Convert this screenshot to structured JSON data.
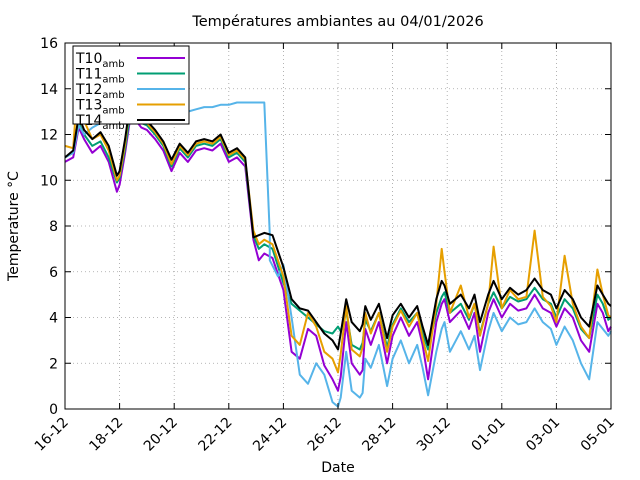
{
  "chart_data": {
    "type": "line",
    "title": "Températures ambiantes au 04/01/2026",
    "xlabel": "Date",
    "ylabel": "Temperature °C",
    "xlim": [
      0,
      20
    ],
    "ylim": [
      0,
      16
    ],
    "grid": true,
    "legend_position": "top-left",
    "x_ticks": [
      {
        "value": 0,
        "label": "16-12"
      },
      {
        "value": 2,
        "label": "18-12"
      },
      {
        "value": 4,
        "label": "20-12"
      },
      {
        "value": 6,
        "label": "22-12"
      },
      {
        "value": 8,
        "label": "24-12"
      },
      {
        "value": 10,
        "label": "26-12"
      },
      {
        "value": 12,
        "label": "28-12"
      },
      {
        "value": 14,
        "label": "30-12"
      },
      {
        "value": 16,
        "label": "01-01"
      },
      {
        "value": 18,
        "label": "03-01"
      },
      {
        "value": 20,
        "label": "05-01"
      }
    ],
    "y_ticks": [
      0,
      2,
      4,
      6,
      8,
      10,
      12,
      14,
      16
    ],
    "x_unit": "days since 16-12",
    "series": [
      {
        "name": "T10",
        "subscript": "amb",
        "color": "#9400d3",
        "x": [
          0,
          0.3,
          0.5,
          0.7,
          1.0,
          1.3,
          1.6,
          1.9,
          2.0,
          2.2,
          2.4,
          2.5,
          2.6,
          2.8,
          3.0,
          3.3,
          3.6,
          3.9,
          4.2,
          4.5,
          4.8,
          5.1,
          5.4,
          5.7,
          6.0,
          6.3,
          6.6,
          6.9,
          7.1,
          7.3,
          7.6,
          8.0,
          8.3,
          8.6,
          8.9,
          9.2,
          9.5,
          9.8,
          10.0,
          10.1,
          10.3,
          10.5,
          10.8,
          10.9,
          11.0,
          11.2,
          11.5,
          11.8,
          12.0,
          12.3,
          12.6,
          12.9,
          13.1,
          13.3,
          13.6,
          13.8,
          13.9,
          14.1,
          14.5,
          14.8,
          15.0,
          15.2,
          15.5,
          15.7,
          16.0,
          16.3,
          16.6,
          16.9,
          17.2,
          17.5,
          17.8,
          18.0,
          18.3,
          18.6,
          18.9,
          19.2,
          19.5,
          19.7,
          19.9,
          20.0
        ],
        "y": [
          10.8,
          11.0,
          12.3,
          11.8,
          11.2,
          11.5,
          10.8,
          9.5,
          9.8,
          11.2,
          12.8,
          13.0,
          12.6,
          12.3,
          12.2,
          11.8,
          11.3,
          10.4,
          11.2,
          10.8,
          11.3,
          11.4,
          11.3,
          11.6,
          10.8,
          11.0,
          10.6,
          7.4,
          6.5,
          6.8,
          6.6,
          5.2,
          2.5,
          2.2,
          3.5,
          3.2,
          1.9,
          1.3,
          0.8,
          1.4,
          3.8,
          2.0,
          1.5,
          1.7,
          3.5,
          2.8,
          3.8,
          2.0,
          3.2,
          4.0,
          3.2,
          3.8,
          2.8,
          1.3,
          3.8,
          4.6,
          4.8,
          3.8,
          4.3,
          3.5,
          4.2,
          2.5,
          4.2,
          4.8,
          4.0,
          4.6,
          4.3,
          4.4,
          5.0,
          4.4,
          4.2,
          3.6,
          4.4,
          4.0,
          3.0,
          2.5,
          4.6,
          4.2,
          3.4,
          3.6
        ]
      },
      {
        "name": "T11",
        "subscript": "amb",
        "color": "#009e73",
        "x": [
          0,
          0.3,
          0.5,
          0.7,
          1.0,
          1.3,
          1.6,
          1.9,
          2.0,
          2.2,
          2.4,
          2.5,
          2.6,
          2.8,
          3.0,
          3.3,
          3.6,
          3.9,
          4.2,
          4.5,
          4.8,
          5.1,
          5.4,
          5.7,
          6.0,
          6.3,
          6.6,
          6.9,
          7.1,
          7.3,
          7.6,
          8.0,
          8.3,
          8.6,
          8.9,
          9.2,
          9.5,
          9.8,
          10.0,
          10.1,
          10.3,
          10.5,
          10.8,
          10.9,
          11.0,
          11.2,
          11.5,
          11.8,
          12.0,
          12.3,
          12.6,
          12.9,
          13.1,
          13.3,
          13.6,
          13.8,
          13.9,
          14.1,
          14.5,
          14.8,
          15.0,
          15.2,
          15.5,
          15.7,
          16.0,
          16.3,
          16.6,
          16.9,
          17.2,
          17.5,
          17.8,
          18.0,
          18.3,
          18.6,
          18.9,
          19.2,
          19.5,
          19.7,
          19.9,
          20.0
        ],
        "y": [
          11.0,
          11.2,
          12.5,
          12.0,
          11.5,
          11.7,
          11.0,
          9.9,
          10.1,
          11.4,
          13.0,
          13.2,
          12.8,
          12.5,
          12.4,
          12.0,
          11.5,
          10.6,
          11.4,
          11.0,
          11.5,
          11.6,
          11.5,
          11.8,
          11.0,
          11.2,
          10.8,
          7.6,
          7.0,
          7.2,
          7.0,
          5.5,
          4.6,
          4.3,
          4.0,
          3.7,
          3.4,
          3.3,
          3.6,
          3.4,
          4.3,
          2.8,
          2.6,
          2.9,
          3.9,
          3.4,
          4.2,
          2.7,
          3.7,
          4.4,
          3.8,
          4.2,
          3.3,
          2.6,
          4.2,
          4.9,
          5.1,
          4.2,
          4.6,
          3.9,
          4.6,
          3.3,
          4.6,
          5.1,
          4.4,
          4.9,
          4.7,
          4.8,
          5.3,
          4.8,
          4.6,
          4.0,
          4.8,
          4.4,
          3.5,
          3.1,
          5.0,
          4.6,
          3.9,
          4.0
        ]
      },
      {
        "name": "T12",
        "subscript": "amb",
        "color": "#56b4e9",
        "x": [
          0,
          0.3,
          0.5,
          0.6,
          0.7,
          1.0,
          1.3,
          1.6,
          1.9,
          2.0,
          2.2,
          2.4,
          2.5,
          2.6,
          2.8,
          3.0,
          3.3,
          3.6,
          3.9,
          4.2,
          4.5,
          4.8,
          5.1,
          5.4,
          5.7,
          6.0,
          6.3,
          6.6,
          7.3,
          7.5,
          7.5,
          7.8,
          8.0,
          8.3,
          8.6,
          8.9,
          9.2,
          9.5,
          9.8,
          10.0,
          10.1,
          10.3,
          10.5,
          10.8,
          10.9,
          11.0,
          11.2,
          11.5,
          11.8,
          12.0,
          12.3,
          12.6,
          12.9,
          13.1,
          13.3,
          13.6,
          13.8,
          13.9,
          14.1,
          14.5,
          14.8,
          15.0,
          15.2,
          15.5,
          15.7,
          16.0,
          16.3,
          16.6,
          16.9,
          17.2,
          17.5,
          17.8,
          18.0,
          18.3,
          18.6,
          18.9,
          19.2,
          19.5,
          19.7,
          19.9,
          20.0
        ],
        "y": [
          11.0,
          11.2,
          12.4,
          12.2,
          12.0,
          12.3,
          12.5,
          12.6,
          12.7,
          12.8,
          12.9,
          13.0,
          13.1,
          12.9,
          12.8,
          12.9,
          13.0,
          12.9,
          12.8,
          12.9,
          13.0,
          13.1,
          13.2,
          13.2,
          13.3,
          13.3,
          13.4,
          13.4,
          13.4,
          7.6,
          6.5,
          5.8,
          6.3,
          4.0,
          1.5,
          1.1,
          2.0,
          1.5,
          0.3,
          0.1,
          0.5,
          2.5,
          0.8,
          0.5,
          0.7,
          2.2,
          1.8,
          2.8,
          1.0,
          2.2,
          3.0,
          2.0,
          2.8,
          1.8,
          0.6,
          2.5,
          3.5,
          3.8,
          2.5,
          3.4,
          2.6,
          3.2,
          1.7,
          3.4,
          4.2,
          3.4,
          4.0,
          3.7,
          3.8,
          4.4,
          3.8,
          3.5,
          2.8,
          3.6,
          3.0,
          2.0,
          1.3,
          3.8,
          3.5,
          3.2,
          3.4
        ]
      },
      {
        "name": "T13",
        "subscript": "amb",
        "color": "#e69f00",
        "x": [
          0,
          0.3,
          0.5,
          0.7,
          1.0,
          1.3,
          1.6,
          1.9,
          2.0,
          2.2,
          2.4,
          2.5,
          2.6,
          2.8,
          3.0,
          3.3,
          3.6,
          3.9,
          4.2,
          4.5,
          4.8,
          5.1,
          5.4,
          5.7,
          6.0,
          6.3,
          6.6,
          6.9,
          7.1,
          7.3,
          7.6,
          8.0,
          8.3,
          8.6,
          8.9,
          9.2,
          9.5,
          9.8,
          10.0,
          10.1,
          10.3,
          10.5,
          10.8,
          10.9,
          11.0,
          11.2,
          11.5,
          11.8,
          12.0,
          12.3,
          12.6,
          12.9,
          13.1,
          13.3,
          13.6,
          13.8,
          13.9,
          14.1,
          14.5,
          14.8,
          15.0,
          15.2,
          15.5,
          15.7,
          16.0,
          16.3,
          16.6,
          16.9,
          17.2,
          17.5,
          17.8,
          18.0,
          18.3,
          18.6,
          18.9,
          19.2,
          19.5,
          19.7,
          19.9,
          20.0
        ],
        "y": [
          11.5,
          11.4,
          14.8,
          12.6,
          11.8,
          12.0,
          11.3,
          10.0,
          10.2,
          11.6,
          13.5,
          13.8,
          13.3,
          12.7,
          12.5,
          12.1,
          11.6,
          10.7,
          11.5,
          11.1,
          11.6,
          11.7,
          11.6,
          11.9,
          11.1,
          11.3,
          10.9,
          7.8,
          7.2,
          7.4,
          7.2,
          5.8,
          3.2,
          2.8,
          4.2,
          3.6,
          2.5,
          2.2,
          1.6,
          2.4,
          4.5,
          2.6,
          2.3,
          2.7,
          4.2,
          3.3,
          4.2,
          2.5,
          3.6,
          4.3,
          3.6,
          4.2,
          3.1,
          2.1,
          4.6,
          7.0,
          6.0,
          4.2,
          5.4,
          4.0,
          4.6,
          3.2,
          4.6,
          7.1,
          4.4,
          5.2,
          4.8,
          4.9,
          7.8,
          4.9,
          4.5,
          3.8,
          6.7,
          4.6,
          3.6,
          3.1,
          6.1,
          5.0,
          4.1,
          4.0
        ]
      },
      {
        "name": "T14",
        "subscript": "amb",
        "color": "#000000",
        "x": [
          0,
          0.3,
          0.5,
          0.7,
          1.0,
          1.3,
          1.6,
          1.9,
          2.0,
          2.2,
          2.4,
          2.5,
          2.6,
          2.8,
          3.0,
          3.3,
          3.6,
          3.9,
          4.2,
          4.5,
          4.8,
          5.1,
          5.4,
          5.7,
          6.0,
          6.3,
          6.6,
          6.9,
          7.1,
          7.3,
          7.6,
          8.0,
          8.3,
          8.6,
          8.9,
          9.2,
          9.5,
          9.8,
          10.0,
          10.1,
          10.3,
          10.5,
          10.8,
          10.9,
          11.0,
          11.2,
          11.5,
          11.8,
          12.0,
          12.3,
          12.6,
          12.9,
          13.1,
          13.3,
          13.6,
          13.8,
          13.9,
          14.1,
          14.5,
          14.8,
          15.0,
          15.2,
          15.5,
          15.7,
          16.0,
          16.3,
          16.6,
          16.9,
          17.2,
          17.5,
          17.8,
          18.0,
          18.3,
          18.6,
          18.9,
          19.2,
          19.5,
          19.7,
          19.9,
          20.0
        ],
        "y": [
          11.0,
          11.3,
          12.8,
          12.2,
          11.8,
          12.1,
          11.5,
          10.2,
          10.4,
          11.8,
          13.5,
          13.6,
          13.2,
          12.8,
          12.6,
          12.2,
          11.7,
          10.9,
          11.6,
          11.2,
          11.7,
          11.8,
          11.7,
          12.0,
          11.2,
          11.4,
          11.0,
          7.5,
          7.6,
          7.7,
          7.6,
          6.2,
          4.8,
          4.4,
          4.3,
          3.8,
          3.3,
          3.0,
          2.6,
          3.3,
          4.8,
          3.8,
          3.4,
          3.7,
          4.5,
          3.9,
          4.6,
          3.1,
          4.1,
          4.6,
          4.0,
          4.5,
          3.6,
          2.8,
          4.8,
          5.6,
          5.4,
          4.6,
          5.0,
          4.4,
          5.0,
          3.8,
          5.0,
          5.6,
          4.8,
          5.3,
          5.0,
          5.2,
          5.7,
          5.2,
          5.0,
          4.4,
          5.2,
          4.8,
          4.0,
          3.6,
          5.4,
          5.0,
          4.6,
          4.5
        ]
      }
    ]
  }
}
